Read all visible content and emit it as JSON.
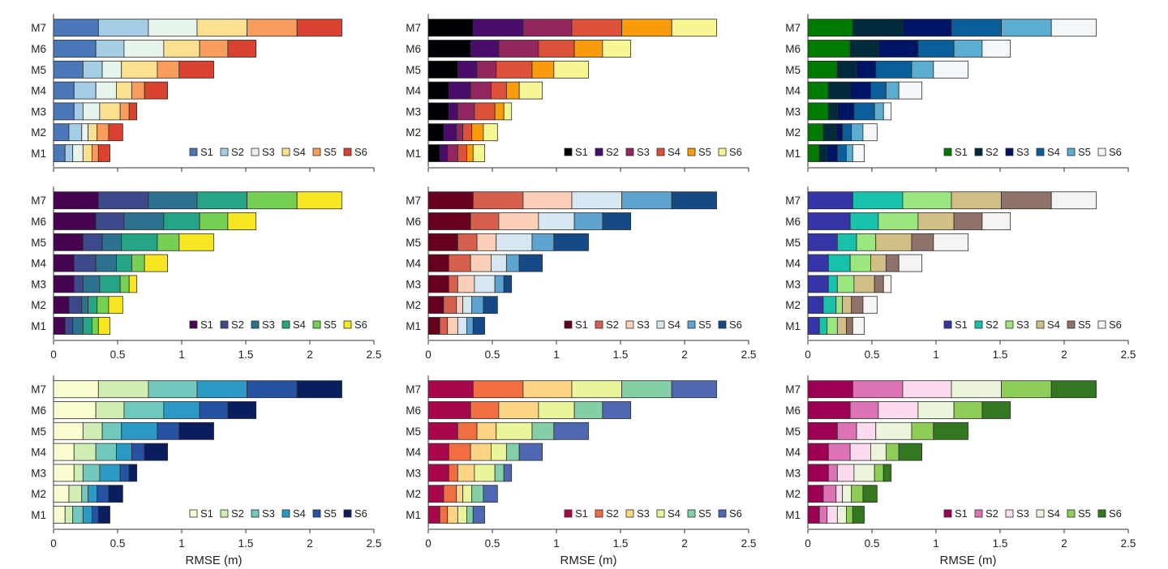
{
  "chart_data": {
    "type": "bar",
    "orientation": "horizontal",
    "stacked": true,
    "layout": "3x3 grid",
    "categories": [
      "M1",
      "M2",
      "M3",
      "M4",
      "M5",
      "M6",
      "M7"
    ],
    "xlabel": "RMSE (m)",
    "xlim": [
      0,
      2.5
    ],
    "xticks": [
      "0",
      "0.5",
      "1",
      "1.5",
      "2",
      "2.5"
    ],
    "legend_position": "bottom-right",
    "series": [
      {
        "name": "S1",
        "values": [
          0.09,
          0.12,
          0.16,
          0.16,
          0.23,
          0.33,
          0.35
        ]
      },
      {
        "name": "S2",
        "values": [
          0.06,
          0.1,
          0.07,
          0.17,
          0.15,
          0.22,
          0.39
        ]
      },
      {
        "name": "S3",
        "values": [
          0.08,
          0.05,
          0.13,
          0.16,
          0.15,
          0.31,
          0.38
        ]
      },
      {
        "name": "S4",
        "values": [
          0.07,
          0.07,
          0.16,
          0.12,
          0.28,
          0.28,
          0.39
        ]
      },
      {
        "name": "S5",
        "values": [
          0.05,
          0.09,
          0.07,
          0.1,
          0.17,
          0.22,
          0.39
        ]
      },
      {
        "name": "S6",
        "values": [
          0.09,
          0.11,
          0.06,
          0.18,
          0.27,
          0.22,
          0.35
        ]
      }
    ],
    "panels": [
      {
        "colormap": "RdYlBu reversed",
        "colors": [
          "#4a78b8",
          "#a6cde6",
          "#e6f4ec",
          "#fbe092",
          "#f89d5c",
          "#d94130"
        ],
        "xaxis": "none"
      },
      {
        "colormap": "inferno",
        "colors": [
          "#000004",
          "#4a0c6b",
          "#93265e",
          "#dd513a",
          "#fa9b0c",
          "#f6f794"
        ],
        "xaxis": "none"
      },
      {
        "colormap": "ocean",
        "colors": [
          "#007a00",
          "#002b3a",
          "#001466",
          "#0a5e99",
          "#5caed0",
          "#f4f7fa"
        ],
        "xaxis": "none"
      },
      {
        "colormap": "viridis",
        "colors": [
          "#44044f",
          "#3c4a8b",
          "#2c728e",
          "#25a585",
          "#75d054",
          "#f8e621"
        ],
        "xaxis": "ticks"
      },
      {
        "colormap": "RdBu",
        "colors": [
          "#67001f",
          "#d6604d",
          "#fcd0b8",
          "#d6e7f1",
          "#5da4d0",
          "#154a87"
        ],
        "xaxis": "ticks"
      },
      {
        "colormap": "terrain",
        "colors": [
          "#3535a8",
          "#16c2aa",
          "#9ae67f",
          "#d2bf85",
          "#8f736b",
          "#f5f4f2"
        ],
        "xaxis": "ticks"
      },
      {
        "colormap": "YlGnBu",
        "colors": [
          "#fcfed2",
          "#d0edb3",
          "#73c8bd",
          "#2a9ac4",
          "#2552a2",
          "#0a1d5e"
        ],
        "xaxis": "ticks-label"
      },
      {
        "colormap": "Spectral",
        "colors": [
          "#a8084b",
          "#f16e43",
          "#fdd584",
          "#e9f49b",
          "#85cfa6",
          "#4e69b2"
        ],
        "xaxis": "ticks-label"
      },
      {
        "colormap": "PiYG",
        "colors": [
          "#9d0053",
          "#dd72b4",
          "#fcdbee",
          "#eaf5dc",
          "#8fcd59",
          "#337820"
        ],
        "xaxis": "ticks-label"
      }
    ]
  }
}
